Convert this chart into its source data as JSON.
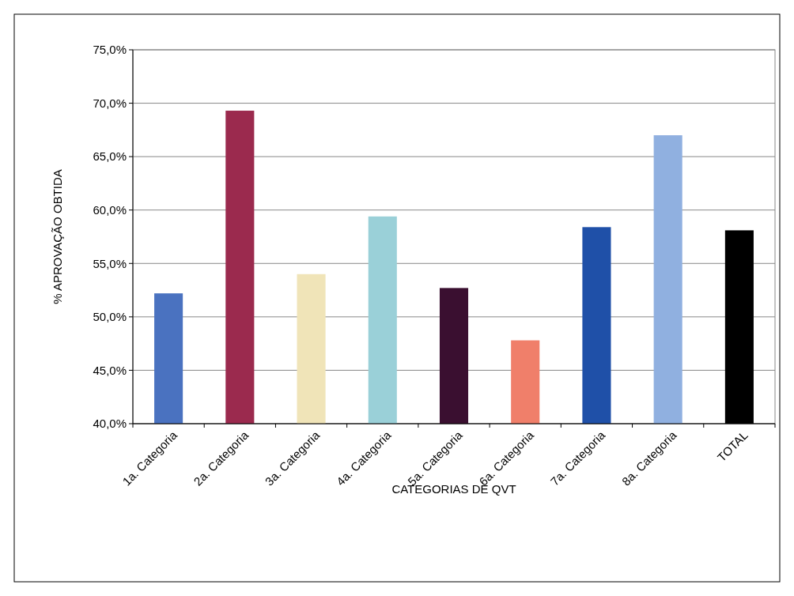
{
  "chart_data": {
    "type": "bar",
    "xlabel": "CATEGORIAS DE QVT",
    "ylabel": "% APROVAÇÃO OBTIDA",
    "categories": [
      "1a. Categoria",
      "2a. Categoria",
      "3a. Categoria",
      "4a. Categoria",
      "5a. Categoria",
      "6a. Categoria",
      "7a. Categoria",
      "8a. Categoria",
      "TOTAL"
    ],
    "values": [
      52.2,
      69.3,
      54.0,
      59.4,
      52.7,
      47.8,
      58.4,
      67.0,
      58.1
    ],
    "colors": [
      "#4a72c0",
      "#9b2a4e",
      "#f0e4b8",
      "#9ad0d8",
      "#3a0f30",
      "#f07f6a",
      "#1f50a8",
      "#90b0e0",
      "#000000"
    ],
    "ylim": [
      40,
      75
    ],
    "yticks": [
      {
        "value": 40,
        "label": "40,0%"
      },
      {
        "value": 45,
        "label": "45,0%"
      },
      {
        "value": 50,
        "label": "50,0%"
      },
      {
        "value": 55,
        "label": "55,0%"
      },
      {
        "value": 60,
        "label": "60,0%"
      },
      {
        "value": 65,
        "label": "65,0%"
      },
      {
        "value": 70,
        "label": "70,0%"
      },
      {
        "value": 75,
        "label": "75,0%"
      }
    ],
    "grid": "y"
  }
}
